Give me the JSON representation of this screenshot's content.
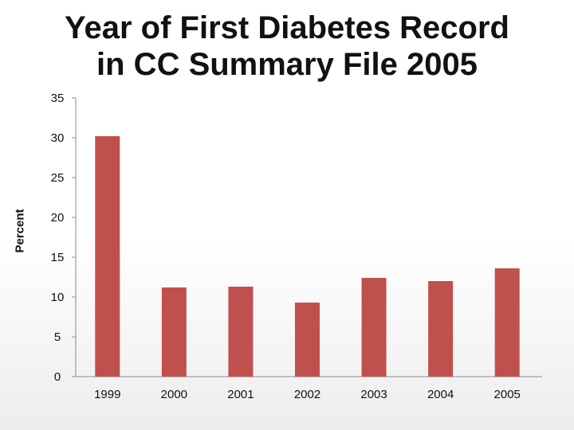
{
  "chart_data": {
    "type": "bar",
    "title_line1": "Year of First Diabetes Record",
    "title_line2": "in CC Summary File 2005",
    "xlabel": "",
    "ylabel": "Percent",
    "categories": [
      "1999",
      "2000",
      "2001",
      "2002",
      "2003",
      "2004",
      "2005"
    ],
    "values": [
      30.2,
      11.2,
      11.3,
      9.3,
      12.4,
      12.0,
      13.6
    ],
    "ylim": [
      0,
      35
    ],
    "yticks": [
      0,
      5,
      10,
      15,
      20,
      25,
      30,
      35
    ],
    "grid": false,
    "bar_color": "#c0504d"
  }
}
